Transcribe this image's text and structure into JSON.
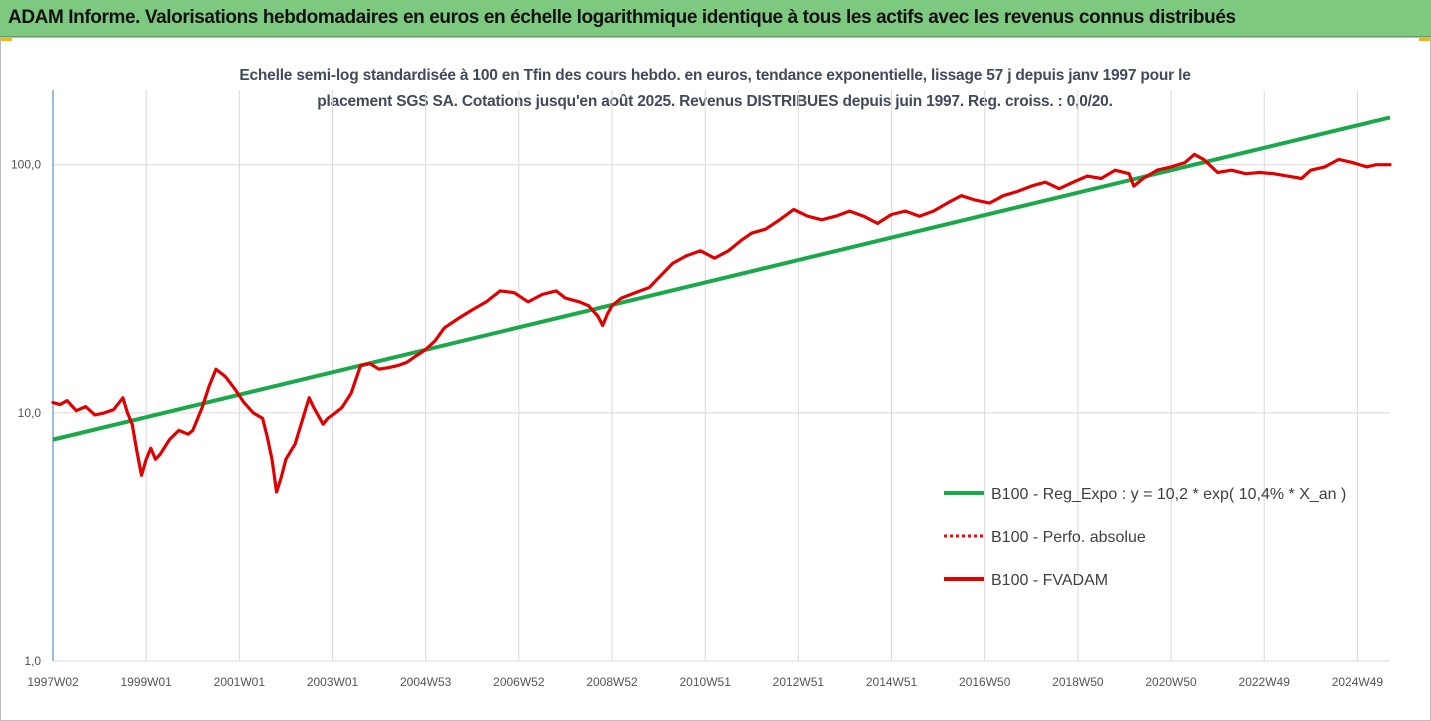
{
  "banner": {
    "title": "ADAM Informe. Valorisations hebdomadaires en euros en échelle logarithmique identique à tous les actifs avec les revenus connus distribués"
  },
  "chart_data": {
    "type": "line",
    "title_line1": "Echelle semi-log standardisée à 100 en Tfin des cours hebdo. en euros, tendance exponentielle, lissage 57 j depuis janv 1997 pour le",
    "title_line2": "placement SGS SA. Cotations jusqu'en août 2025. Revenus DISTRIBUES depuis juin 1997. Reg. croiss. : 0,0/20.",
    "y_scale": "log",
    "ylim": [
      1,
      200
    ],
    "y_ticks": [
      1,
      10,
      100
    ],
    "y_tick_labels": [
      "1,0",
      "10,0",
      "100,0"
    ],
    "x_range": [
      1997.0,
      2025.7
    ],
    "x_ticks": [
      1997.0,
      1999.0,
      2001.0,
      2003.0,
      2005.0,
      2007.0,
      2009.0,
      2011.0,
      2013.0,
      2015.0,
      2017.0,
      2019.0,
      2021.0,
      2023.0,
      2025.0
    ],
    "x_tick_labels": [
      "1997W02",
      "1999W01",
      "2001W01",
      "2003W01",
      "2004W53",
      "2006W52",
      "2008W52",
      "2010W51",
      "2012W51",
      "2014W51",
      "2016W50",
      "2018W50",
      "2020W50",
      "2022W49",
      "2024W49"
    ],
    "grid": true,
    "legend_position": "right",
    "colors": {
      "trend": "#1aa84a",
      "perfo": "#ff0000",
      "fvadam": "#e00000",
      "grid": "#d9d9d9",
      "axis": "#5b8fc7"
    },
    "series": [
      {
        "name": "B100 - Reg_Expo : y = 10,2 * exp( 10,4% *  X_an )",
        "style": "solid-green",
        "x": [
          1997.0,
          2025.7
        ],
        "values": [
          7.8,
          155
        ]
      },
      {
        "name": "B100 - Perfo. absolue",
        "style": "dotted-red",
        "x": [],
        "values": []
      },
      {
        "name": "B100 - FVADAM",
        "style": "solid-red",
        "x": [
          1997.0,
          1997.15,
          1997.3,
          1997.5,
          1997.7,
          1997.9,
          1998.1,
          1998.3,
          1998.5,
          1998.6,
          1998.7,
          1998.8,
          1998.9,
          1999.0,
          1999.1,
          1999.2,
          1999.3,
          1999.5,
          1999.7,
          1999.9,
          2000.0,
          2000.2,
          2000.35,
          2000.5,
          2000.7,
          2000.9,
          2001.1,
          2001.3,
          2001.5,
          2001.6,
          2001.7,
          2001.8,
          2001.9,
          2002.0,
          2002.2,
          2002.4,
          2002.5,
          2002.6,
          2002.8,
          2002.9,
          2003.0,
          2003.2,
          2003.4,
          2003.6,
          2003.8,
          2004.0,
          2004.2,
          2004.4,
          2004.6,
          2004.8,
          2005.0,
          2005.2,
          2005.4,
          2005.7,
          2006.0,
          2006.3,
          2006.6,
          2006.9,
          2007.2,
          2007.5,
          2007.8,
          2008.0,
          2008.3,
          2008.5,
          2008.7,
          2008.8,
          2008.9,
          2009.0,
          2009.2,
          2009.5,
          2009.8,
          2010.0,
          2010.3,
          2010.6,
          2010.9,
          2011.2,
          2011.5,
          2011.8,
          2012.0,
          2012.3,
          2012.6,
          2012.9,
          2013.2,
          2013.5,
          2013.8,
          2014.1,
          2014.4,
          2014.7,
          2015.0,
          2015.3,
          2015.6,
          2015.9,
          2016.2,
          2016.5,
          2016.8,
          2017.1,
          2017.4,
          2017.7,
          2018.0,
          2018.3,
          2018.6,
          2018.9,
          2019.2,
          2019.5,
          2019.8,
          2020.1,
          2020.2,
          2020.4,
          2020.7,
          2021.0,
          2021.3,
          2021.5,
          2021.7,
          2022.0,
          2022.3,
          2022.6,
          2022.9,
          2023.2,
          2023.5,
          2023.8,
          2024.0,
          2024.3,
          2024.6,
          2024.9,
          2025.2,
          2025.4,
          2025.7
        ],
        "values": [
          11.0,
          10.8,
          11.2,
          10.2,
          10.6,
          9.8,
          10.0,
          10.3,
          11.5,
          10.0,
          9.0,
          7.0,
          5.6,
          6.5,
          7.2,
          6.5,
          6.8,
          7.8,
          8.5,
          8.2,
          8.5,
          10.5,
          12.8,
          15.0,
          14.0,
          12.5,
          11.0,
          10.0,
          9.5,
          8.0,
          6.5,
          4.8,
          5.5,
          6.5,
          7.5,
          10.0,
          11.5,
          10.5,
          9.0,
          9.5,
          9.8,
          10.5,
          12.0,
          15.5,
          15.8,
          15.0,
          15.2,
          15.5,
          16.0,
          17.0,
          18.0,
          19.5,
          22.0,
          24.0,
          26.0,
          28.0,
          31.0,
          30.5,
          28.0,
          30.0,
          31.0,
          29.0,
          28.0,
          27.0,
          24.5,
          22.5,
          25.0,
          27.0,
          29.0,
          30.5,
          32.0,
          35.0,
          40.0,
          43.0,
          45.0,
          42.0,
          45.0,
          50.0,
          53.0,
          55.0,
          60.0,
          66.0,
          62.0,
          60.0,
          62.0,
          65.0,
          62.0,
          58.0,
          63.0,
          65.0,
          62.0,
          65.0,
          70.0,
          75.0,
          72.0,
          70.0,
          75.0,
          78.0,
          82.0,
          85.0,
          80.0,
          85.0,
          90.0,
          88.0,
          95.0,
          92.0,
          82.0,
          88.0,
          95.0,
          98.0,
          102.0,
          110.0,
          105.0,
          93.0,
          95.0,
          92.0,
          93.0,
          92.0,
          90.0,
          88.0,
          95.0,
          98.0,
          105.0,
          102.0,
          98.0,
          100.0,
          100.0
        ]
      }
    ]
  }
}
